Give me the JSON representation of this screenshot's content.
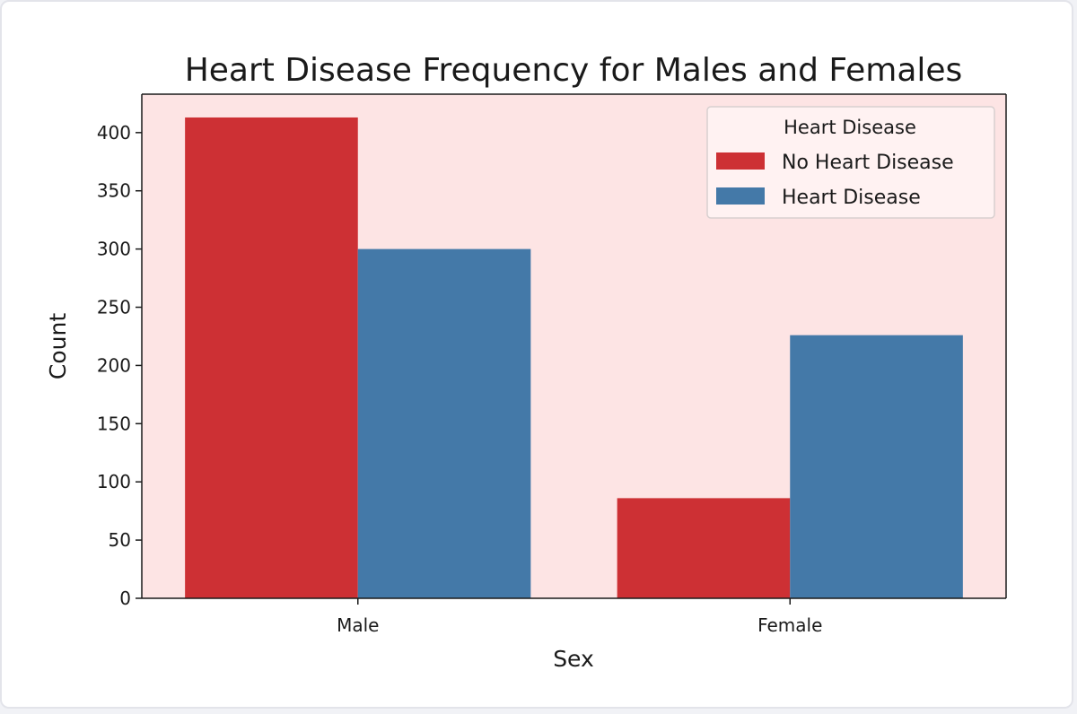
{
  "chart_data": {
    "type": "bar",
    "title": "Heart Disease Frequency for Males and Females",
    "xlabel": "Sex",
    "ylabel": "Count",
    "categories": [
      "Male",
      "Female"
    ],
    "series": [
      {
        "name": "No Heart Disease",
        "values": [
          413,
          86
        ],
        "color": "#cd3034"
      },
      {
        "name": "Heart Disease",
        "values": [
          300,
          226
        ],
        "color": "#4479a8"
      }
    ],
    "ylim": [
      0,
      433
    ],
    "yticks": [
      0,
      50,
      100,
      150,
      200,
      250,
      300,
      350,
      400
    ],
    "legend": {
      "title": "Heart Disease",
      "placement": "top-right"
    },
    "plot_background": "#fde4e4",
    "grid": false
  }
}
